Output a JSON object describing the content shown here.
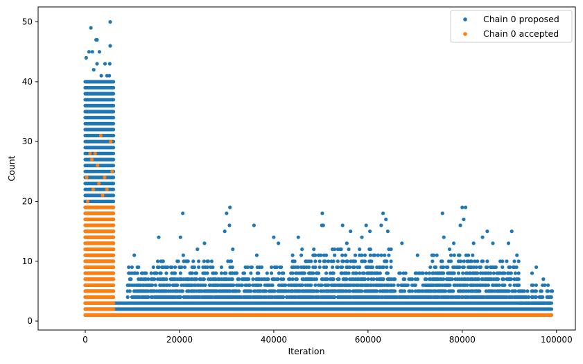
{
  "chart_data": {
    "type": "scatter",
    "xlabel": "Iteration",
    "ylabel": "Count",
    "xlim": [
      -10000,
      104000
    ],
    "ylim": [
      -1.5,
      52.5
    ],
    "xticks": [
      0,
      20000,
      40000,
      60000,
      80000,
      100000
    ],
    "xtick_labels": [
      "0",
      "20000",
      "40000",
      "60000",
      "80000",
      "100000"
    ],
    "yticks": [
      0,
      10,
      20,
      30,
      40,
      50
    ],
    "ytick_labels": [
      "0",
      "10",
      "20",
      "30",
      "40",
      "50"
    ],
    "grid": false,
    "legend_position": "upper right",
    "series": [
      {
        "name": "Chain 0 proposed",
        "color": "#1f77b4",
        "points": [
          [
            1200,
            49
          ],
          [
            5300,
            50
          ],
          [
            200,
            44
          ],
          [
            800,
            45
          ],
          [
            1500,
            45
          ],
          [
            2300,
            47
          ],
          [
            2500,
            47
          ],
          [
            3000,
            45
          ],
          [
            5300,
            46
          ],
          [
            2500,
            43
          ],
          [
            4200,
            43
          ],
          [
            5200,
            43
          ],
          [
            1800,
            42
          ],
          [
            3400,
            41
          ],
          [
            4600,
            41
          ],
          [
            5100,
            41
          ],
          [
            20700,
            18
          ],
          [
            30000,
            18
          ],
          [
            30700,
            19
          ],
          [
            50300,
            18
          ],
          [
            63200,
            18
          ],
          [
            75800,
            18
          ],
          [
            80000,
            19
          ],
          [
            80700,
            19
          ],
          [
            15600,
            14
          ],
          [
            20200,
            14
          ],
          [
            23800,
            12
          ],
          [
            25300,
            13
          ],
          [
            29600,
            15
          ],
          [
            30600,
            16
          ],
          [
            35800,
            16
          ],
          [
            40000,
            14
          ],
          [
            41000,
            13
          ],
          [
            45200,
            14
          ],
          [
            50200,
            16
          ],
          [
            50500,
            16
          ],
          [
            54600,
            16
          ],
          [
            56300,
            15
          ],
          [
            58700,
            14
          ],
          [
            59600,
            16
          ],
          [
            60400,
            15
          ],
          [
            62800,
            16
          ],
          [
            63800,
            17
          ],
          [
            64200,
            15
          ],
          [
            76100,
            14
          ],
          [
            78200,
            13
          ],
          [
            79600,
            16
          ],
          [
            80300,
            17
          ],
          [
            85300,
            15
          ],
          [
            90500,
            15
          ],
          [
            89800,
            13
          ],
          [
            95700,
            9
          ],
          [
            10400,
            11
          ],
          [
            20800,
            11
          ],
          [
            21600,
            10
          ],
          [
            26100,
            10
          ],
          [
            31300,
            12
          ],
          [
            36400,
            11
          ],
          [
            46000,
            12
          ],
          [
            48500,
            12
          ],
          [
            55500,
            13
          ],
          [
            67200,
            13
          ],
          [
            70500,
            11
          ],
          [
            73600,
            11
          ],
          [
            77300,
            12
          ],
          [
            82400,
            13
          ],
          [
            84300,
            14
          ],
          [
            86500,
            13
          ],
          [
            91600,
            11
          ],
          [
            94800,
            8
          ],
          [
            99100,
            5
          ],
          [
            97200,
            7
          ]
        ],
        "dense_blocks": [
          {
            "x": [
              0,
              6000
            ],
            "y": [
              1,
              40
            ],
            "mode": "all"
          },
          {
            "x": [
              6000,
              99000
            ],
            "y": [
              1,
              3
            ],
            "mode": "all"
          },
          {
            "x": [
              9000,
              14000
            ],
            "y": [
              4,
              9
            ],
            "mode": "sparse"
          },
          {
            "x": [
              14000,
              22000
            ],
            "y": [
              4,
              10
            ],
            "mode": "sparse"
          },
          {
            "x": [
              22000,
              31000
            ],
            "y": [
              4,
              10
            ],
            "mode": "sparse"
          },
          {
            "x": [
              31000,
              44000
            ],
            "y": [
              4,
              9
            ],
            "mode": "sparse"
          },
          {
            "x": [
              44000,
              52000
            ],
            "y": [
              4,
              11
            ],
            "mode": "sparse"
          },
          {
            "x": [
              52000,
              65000
            ],
            "y": [
              4,
              12
            ],
            "mode": "sparse"
          },
          {
            "x": [
              65000,
              73000
            ],
            "y": [
              4,
              8
            ],
            "mode": "sparse"
          },
          {
            "x": [
              73000,
              83000
            ],
            "y": [
              4,
              11
            ],
            "mode": "sparse"
          },
          {
            "x": [
              83000,
              92000
            ],
            "y": [
              4,
              10
            ],
            "mode": "sparse"
          },
          {
            "x": [
              92000,
              99000
            ],
            "y": [
              3,
              6
            ],
            "mode": "sparse"
          }
        ]
      },
      {
        "name": "Chain 0 accepted",
        "color": "#ff7f0e",
        "points": [
          [
            3300,
            31
          ],
          [
            2100,
            28
          ],
          [
            1400,
            27
          ],
          [
            1000,
            28
          ],
          [
            2600,
            26
          ],
          [
            5400,
            30
          ],
          [
            5700,
            25
          ],
          [
            300,
            24
          ],
          [
            4100,
            24
          ],
          [
            2900,
            23
          ],
          [
            4600,
            22
          ],
          [
            1700,
            22
          ],
          [
            3700,
            21
          ],
          [
            500,
            20
          ]
        ],
        "dense_blocks": [
          {
            "x": [
              0,
              6000
            ],
            "y": [
              1,
              19
            ],
            "mode": "all"
          },
          {
            "x": [
              6000,
              99000
            ],
            "y": [
              1,
              1
            ],
            "mode": "all"
          }
        ]
      }
    ]
  }
}
